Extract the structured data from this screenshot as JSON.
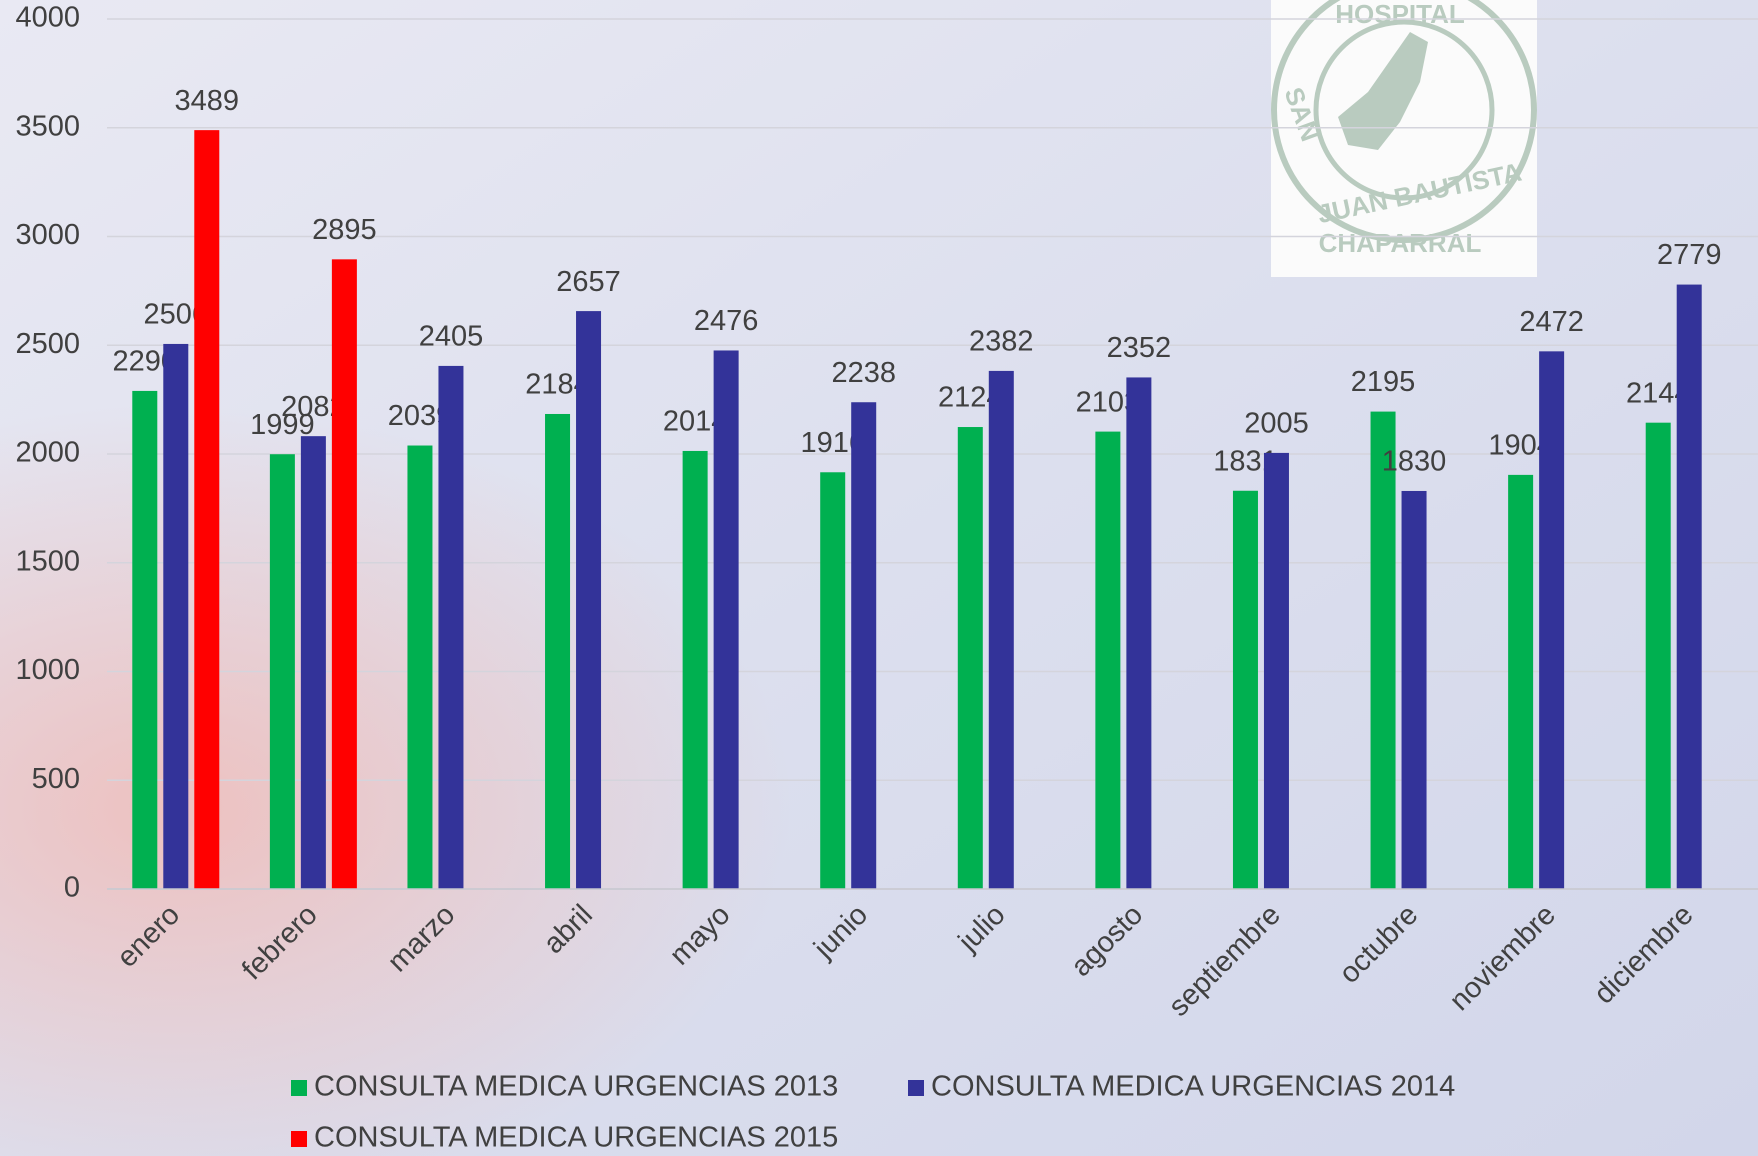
{
  "chart_data": {
    "type": "bar",
    "categories": [
      "enero",
      "febrero",
      "marzo",
      "abril",
      "mayo",
      "junio",
      "julio",
      "agosto",
      "septiembre",
      "octubre",
      "noviembre",
      "diciembre"
    ],
    "series": [
      {
        "name": "CONSULTA MEDICA URGENCIAS 2013",
        "color": "#00b050",
        "values": [
          2290,
          1999,
          2039,
          2184,
          2014,
          1916,
          2124,
          2103,
          1831,
          2195,
          1904,
          2144
        ]
      },
      {
        "name": "CONSULTA MEDICA URGENCIAS 2014",
        "color": "#333399",
        "values": [
          2506,
          2082,
          2405,
          2657,
          2476,
          2238,
          2382,
          2352,
          2005,
          1830,
          2472,
          2779
        ]
      },
      {
        "name": "CONSULTA MEDICA URGENCIAS 2015",
        "color": "#ff0000",
        "values": [
          3489,
          2895,
          null,
          null,
          null,
          null,
          null,
          null,
          null,
          null,
          null,
          null
        ]
      }
    ],
    "ylim": [
      0,
      4000
    ],
    "yticks": [
      0,
      500,
      1000,
      1500,
      2000,
      2500,
      3000,
      3500,
      4000
    ],
    "grid": true,
    "legend": "bottom"
  },
  "logo": {
    "top": "HOSPITAL",
    "left": "SAN",
    "bottom": "JUAN BAUTISTA",
    "banner": "CHAPARRAL"
  }
}
